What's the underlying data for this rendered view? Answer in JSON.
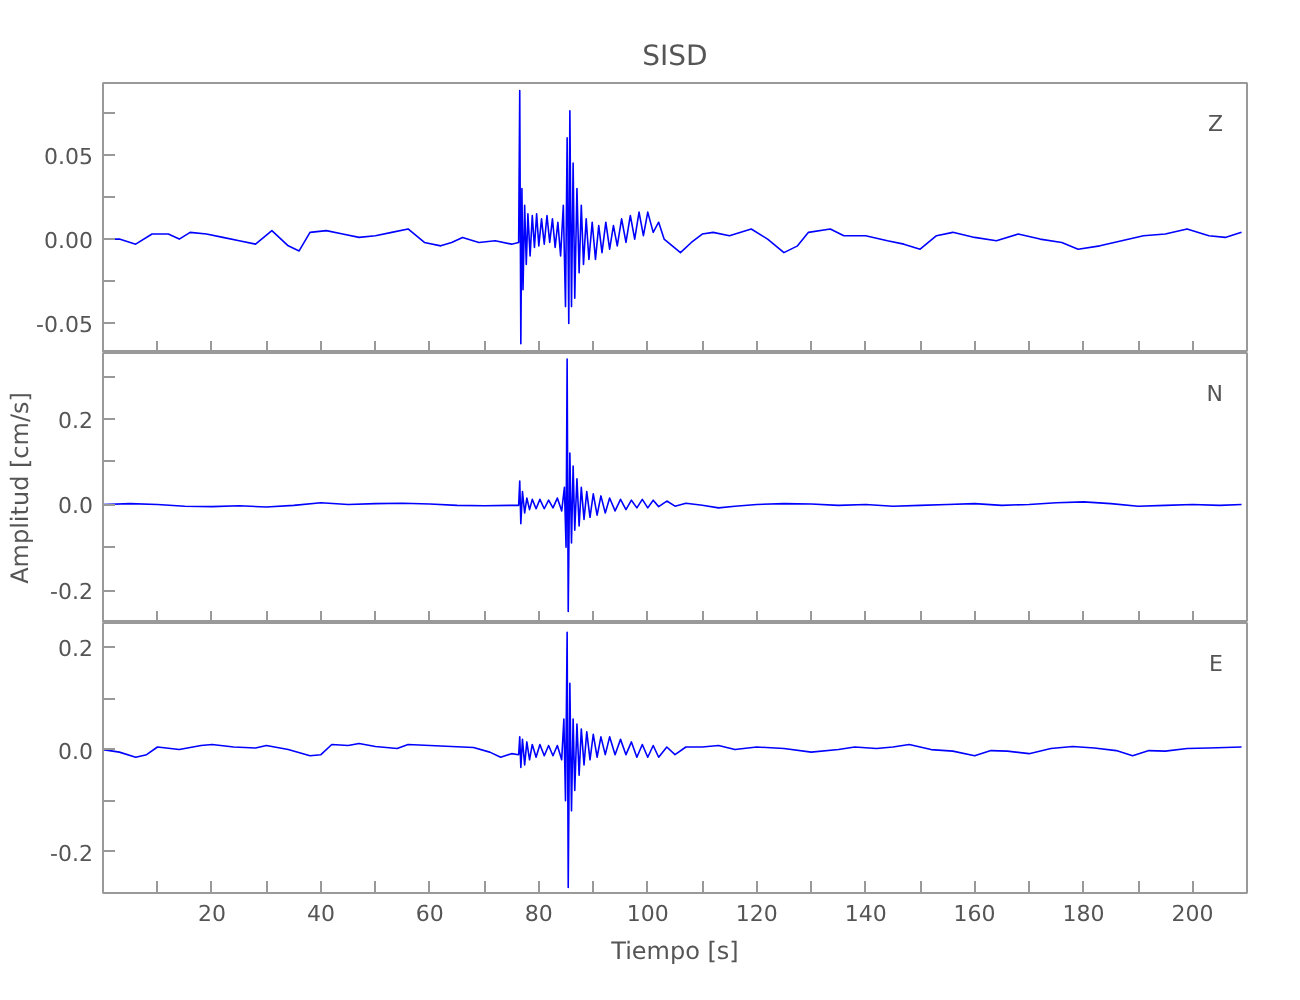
{
  "chart_data": [
    {
      "type": "line",
      "title": "SISD",
      "annotations": [
        "Z"
      ],
      "grid": false,
      "tick_labels": "y",
      "xlim": [
        0,
        210
      ],
      "ylim": [
        -0.0675,
        0.0925
      ],
      "xticks": [
        {
          "value": 10,
          "label": null
        },
        {
          "value": 20,
          "label": null
        },
        {
          "value": 30,
          "label": null
        },
        {
          "value": 40,
          "label": null
        },
        {
          "value": 50,
          "label": null
        },
        {
          "value": 60,
          "label": null
        },
        {
          "value": 70,
          "label": null
        },
        {
          "value": 80,
          "label": null
        },
        {
          "value": 90,
          "label": null
        },
        {
          "value": 100,
          "label": null
        },
        {
          "value": 110,
          "label": null
        },
        {
          "value": 120,
          "label": null
        },
        {
          "value": 130,
          "label": null
        },
        {
          "value": 140,
          "label": null
        },
        {
          "value": 150,
          "label": null
        },
        {
          "value": 160,
          "label": null
        },
        {
          "value": 170,
          "label": null
        },
        {
          "value": 180,
          "label": null
        },
        {
          "value": 190,
          "label": null
        },
        {
          "value": 200,
          "label": null
        }
      ],
      "yticks": [
        {
          "value": -0.05,
          "label": "-0.05"
        },
        {
          "value": -0.025,
          "label": null
        },
        {
          "value": 0,
          "label": "0.00"
        },
        {
          "value": 0.025,
          "label": null
        },
        {
          "value": 0.05,
          "label": "0.05"
        },
        {
          "value": 0.075,
          "label": null
        }
      ],
      "series": [
        {
          "color": "#0000ff",
          "x": [
            0,
            3,
            6,
            9,
            12,
            14,
            16,
            19,
            22,
            25,
            28,
            31,
            34,
            36,
            38,
            41,
            44,
            47,
            50,
            53,
            56,
            59,
            62,
            64,
            66,
            69,
            72,
            75,
            76.3,
            76.5,
            76.7,
            76.9,
            77.1,
            77.4,
            77.7,
            78,
            78.4,
            78.8,
            79.2,
            79.6,
            80,
            80.5,
            81,
            81.5,
            82,
            82.5,
            83,
            83.5,
            84,
            84.5,
            84.9,
            85.2,
            85.5,
            85.7,
            86,
            86.3,
            86.6,
            87,
            87.4,
            87.8,
            88.2,
            88.7,
            89.2,
            89.8,
            90.4,
            91,
            91.6,
            92.3,
            93,
            93.7,
            94.4,
            95.2,
            96,
            96.8,
            97.6,
            98.4,
            99.2,
            100,
            101,
            102,
            103,
            104.5,
            106,
            108,
            110,
            112,
            115,
            119,
            122,
            125,
            127.5,
            129.5,
            133.5,
            136,
            140,
            144,
            147,
            150,
            153,
            156,
            160,
            164,
            168,
            172,
            176,
            179,
            183,
            187,
            191,
            195,
            199,
            203,
            206,
            209
          ],
          "values": [
            0,
            0,
            -0.003,
            0.003,
            0.003,
            0,
            0.004,
            0.003,
            0.001,
            -0.001,
            -0.003,
            0.005,
            -0.004,
            -0.007,
            0.004,
            0.005,
            0.003,
            0.001,
            0.002,
            0.004,
            0.006,
            -0.002,
            -0.004,
            -0.002,
            0.001,
            -0.002,
            -0.001,
            -0.003,
            -0.002,
            0.088,
            -0.062,
            0.03,
            -0.03,
            0.02,
            -0.015,
            0.015,
            -0.01,
            0.014,
            -0.005,
            0.015,
            -0.004,
            0.012,
            -0.003,
            0.014,
            -0.002,
            0.012,
            -0.005,
            0.01,
            -0.01,
            0.02,
            -0.04,
            0.06,
            -0.05,
            0.076,
            -0.04,
            0.045,
            -0.035,
            0.03,
            -0.02,
            0.02,
            -0.015,
            0.012,
            -0.012,
            0.01,
            -0.012,
            0.008,
            -0.008,
            0.01,
            -0.006,
            0.008,
            -0.004,
            0.012,
            -0.002,
            0.014,
            0,
            0.016,
            0.002,
            0.016,
            0.004,
            0.01,
            0,
            -0.004,
            -0.008,
            -0.002,
            0.003,
            0.004,
            0.002,
            0.006,
            0,
            -0.008,
            -0.004,
            0.004,
            0.006,
            0.002,
            0.002,
            -0.001,
            -0.003,
            -0.006,
            0.002,
            0.004,
            0.001,
            -0.001,
            0.003,
            0,
            -0.002,
            -0.006,
            -0.004,
            -0.001,
            0.002,
            0.003,
            0.006,
            0.002,
            0.001,
            0.004
          ]
        }
      ]
    },
    {
      "type": "line",
      "ylabel": "Amplitud [cm/s]",
      "annotations": [
        "N"
      ],
      "grid": false,
      "tick_labels": "y",
      "xlim": [
        0,
        210
      ],
      "ylim": [
        -0.277,
        0.354
      ],
      "xticks": [
        {
          "value": 10,
          "label": null
        },
        {
          "value": 20,
          "label": null
        },
        {
          "value": 30,
          "label": null
        },
        {
          "value": 40,
          "label": null
        },
        {
          "value": 50,
          "label": null
        },
        {
          "value": 60,
          "label": null
        },
        {
          "value": 70,
          "label": null
        },
        {
          "value": 80,
          "label": null
        },
        {
          "value": 90,
          "label": null
        },
        {
          "value": 100,
          "label": null
        },
        {
          "value": 110,
          "label": null
        },
        {
          "value": 120,
          "label": null
        },
        {
          "value": 130,
          "label": null
        },
        {
          "value": 140,
          "label": null
        },
        {
          "value": 150,
          "label": null
        },
        {
          "value": 160,
          "label": null
        },
        {
          "value": 170,
          "label": null
        },
        {
          "value": 180,
          "label": null
        },
        {
          "value": 190,
          "label": null
        },
        {
          "value": 200,
          "label": null
        }
      ],
      "yticks": [
        {
          "value": -0.2,
          "label": "-0.2"
        },
        {
          "value": -0.1,
          "label": null
        },
        {
          "value": 0,
          "label": "0.0"
        },
        {
          "value": 0.1,
          "label": null
        },
        {
          "value": 0.2,
          "label": "0.2"
        },
        {
          "value": 0.3,
          "label": null
        }
      ],
      "series": [
        {
          "color": "#0000ff",
          "x": [
            0,
            5,
            10,
            15,
            20,
            25,
            30,
            35,
            40,
            45,
            50,
            55,
            60,
            65,
            70,
            75,
            76.3,
            76.5,
            76.7,
            77,
            77.4,
            77.8,
            78.3,
            78.8,
            79.5,
            80.2,
            81,
            81.8,
            82.6,
            83.4,
            84.2,
            84.7,
            85,
            85.2,
            85.4,
            85.7,
            86,
            86.3,
            86.6,
            87,
            87.4,
            87.8,
            88.3,
            88.8,
            89.4,
            90,
            90.7,
            91.4,
            92.2,
            93,
            94,
            95,
            96,
            97,
            98,
            99,
            100,
            101,
            102,
            103.5,
            105,
            107,
            110,
            113,
            116,
            120,
            125,
            130,
            135,
            140,
            145,
            150,
            155,
            160,
            165,
            170,
            175,
            180,
            185,
            190,
            195,
            200,
            205,
            209
          ],
          "values": [
            0,
            0.002,
            0,
            -0.004,
            -0.005,
            -0.003,
            -0.006,
            -0.002,
            0.004,
            0,
            0.002,
            0.003,
            0.001,
            -0.002,
            -0.003,
            -0.002,
            -0.002,
            0.055,
            -0.045,
            0.03,
            -0.02,
            0.015,
            -0.012,
            0.012,
            -0.01,
            0.012,
            -0.01,
            0.01,
            -0.008,
            0.015,
            -0.015,
            0.04,
            -0.1,
            0.34,
            -0.25,
            0.12,
            -0.09,
            0.09,
            -0.06,
            0.06,
            -0.05,
            0.04,
            -0.035,
            0.03,
            -0.03,
            0.025,
            -0.025,
            0.02,
            -0.02,
            0.015,
            -0.015,
            0.012,
            -0.012,
            0.01,
            -0.008,
            0.012,
            -0.008,
            0.01,
            -0.005,
            0.008,
            -0.004,
            0.003,
            -0.002,
            -0.008,
            -0.004,
            0,
            0.002,
            0.001,
            -0.002,
            0,
            -0.004,
            -0.002,
            0,
            0.002,
            -0.002,
            0,
            0.004,
            0.006,
            0.002,
            -0.004,
            -0.002,
            0,
            -0.002,
            0
          ]
        }
      ]
    },
    {
      "type": "line",
      "xlabel": "Tiempo [s]",
      "annotations": [
        "E"
      ],
      "grid": false,
      "xlim": [
        0,
        210
      ],
      "ylim": [
        -0.281,
        0.248
      ],
      "xticks": [
        {
          "value": 10,
          "label": null
        },
        20,
        {
          "value": 30,
          "label": null
        },
        40,
        {
          "value": 50,
          "label": null
        },
        60,
        {
          "value": 70,
          "label": null
        },
        80,
        {
          "value": 90,
          "label": null
        },
        100,
        {
          "value": 110,
          "label": null
        },
        120,
        {
          "value": 130,
          "label": null
        },
        140,
        {
          "value": 150,
          "label": null
        },
        160,
        {
          "value": 170,
          "label": null
        },
        180,
        {
          "value": 190,
          "label": null
        },
        200
      ],
      "yticks": [
        {
          "value": -0.2,
          "label": "-0.2"
        },
        {
          "value": -0.1,
          "label": null
        },
        {
          "value": 0,
          "label": "0.0"
        },
        {
          "value": 0.1,
          "label": null
        },
        {
          "value": 0.2,
          "label": "0.2"
        }
      ],
      "series": [
        {
          "color": "#0000ff",
          "x": [
            0,
            3,
            6,
            8,
            10,
            14,
            18,
            20,
            24,
            28,
            30,
            34,
            38,
            40,
            42,
            45,
            47,
            50,
            54,
            56,
            60,
            64,
            68,
            71,
            73,
            75,
            76.3,
            76.5,
            76.7,
            77,
            77.4,
            77.8,
            78.3,
            78.8,
            79.5,
            80.2,
            81,
            81.8,
            82.6,
            83.4,
            84.2,
            84.6,
            84.9,
            85.2,
            85.4,
            85.7,
            86,
            86.3,
            86.6,
            87,
            87.4,
            87.8,
            88.3,
            88.8,
            89.4,
            90,
            90.7,
            91.4,
            92.2,
            93,
            94,
            95,
            96,
            97,
            98,
            99,
            100,
            101,
            102,
            103.5,
            105,
            107,
            110,
            113,
            116,
            120,
            125,
            130,
            135,
            138,
            142,
            145,
            148,
            152,
            156,
            160,
            163,
            166,
            170,
            174,
            178,
            182,
            186,
            189,
            192,
            195,
            199,
            203,
            209
          ],
          "values": [
            0,
            -0.005,
            -0.015,
            -0.01,
            0.005,
            0,
            0.008,
            0.01,
            0.005,
            0.003,
            0.008,
            0,
            -0.012,
            -0.01,
            0.01,
            0.008,
            0.012,
            0.006,
            0.002,
            0.01,
            0.008,
            0.006,
            0.004,
            -0.005,
            -0.015,
            -0.008,
            -0.01,
            0.025,
            -0.035,
            0.02,
            -0.03,
            0.015,
            -0.02,
            0.01,
            -0.015,
            0.01,
            -0.012,
            0.008,
            -0.012,
            0.008,
            -0.02,
            0.06,
            -0.1,
            0.23,
            -0.27,
            0.13,
            -0.12,
            0.06,
            -0.08,
            0.05,
            -0.05,
            0.04,
            -0.03,
            0.035,
            -0.02,
            0.03,
            -0.015,
            0.025,
            -0.01,
            0.025,
            -0.01,
            0.02,
            -0.01,
            0.015,
            -0.015,
            0.01,
            -0.015,
            0.008,
            -0.015,
            0.005,
            -0.01,
            0.005,
            0.005,
            0.008,
            0,
            0.005,
            0.002,
            -0.005,
            0,
            0.005,
            0.002,
            0.005,
            0.01,
            0,
            -0.003,
            -0.012,
            -0.002,
            -0.003,
            -0.008,
            0.002,
            0.006,
            0.003,
            -0.002,
            -0.012,
            -0.002,
            -0.003,
            0.002,
            0.003,
            0.005
          ]
        }
      ]
    }
  ]
}
